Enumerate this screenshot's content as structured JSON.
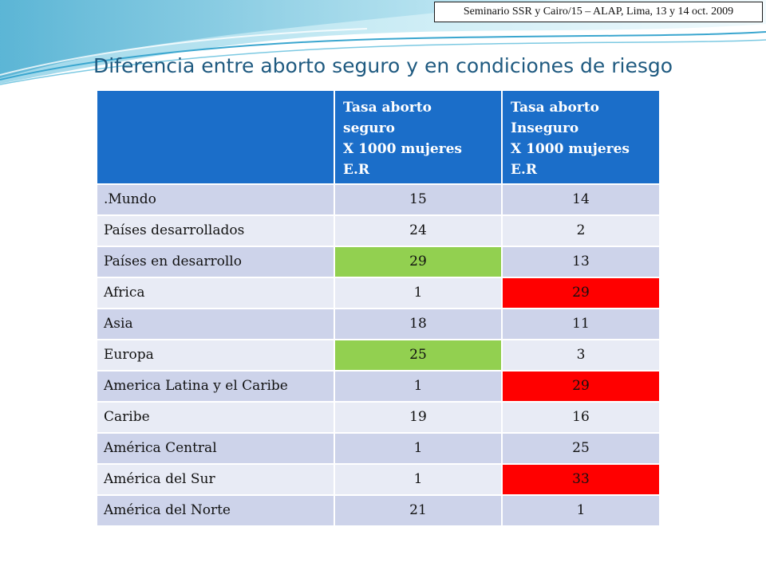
{
  "header": {
    "seminar": "Seminario  SSR y Cairo/15 – ALAP, Lima,  13 y 14 oct. 2009"
  },
  "title": "Diferencia entre aborto seguro y en condiciones de riesgo",
  "table": {
    "columns": [
      "",
      [
        "Tasa aborto",
        "seguro",
        "X 1000 mujeres",
        "E.R"
      ],
      [
        "Tasa aborto",
        "Inseguro",
        "X 1000 mujeres",
        "E.R"
      ]
    ],
    "rows": [
      {
        "label": ".Mundo",
        "seguro": "15",
        "inseguro": "14"
      },
      {
        "label": "Países desarrollados",
        "seguro": "24",
        "inseguro": "2"
      },
      {
        "label": "Países en desarrollo",
        "seguro": "29",
        "inseguro": "13"
      },
      {
        "label": "Africa",
        "seguro": "1",
        "inseguro": "29"
      },
      {
        "label": "Asia",
        "seguro": "18",
        "inseguro": "11"
      },
      {
        "label": "Europa",
        "seguro": "25",
        "inseguro": "3"
      },
      {
        "label": "America Latina y el Caribe",
        "seguro": "1",
        "inseguro": "29"
      },
      {
        "label": "Caribe",
        "seguro": "19",
        "inseguro": "16"
      },
      {
        "label": "América Central",
        "seguro": "1",
        "inseguro": "25"
      },
      {
        "label": "América del Sur",
        "seguro": "1",
        "inseguro": "33"
      },
      {
        "label": "América del Norte",
        "seguro": "21",
        "inseguro": "1"
      }
    ]
  },
  "colors": {
    "header_bg": "#1b6ec9",
    "row_dark": "#cdd3ea",
    "row_light": "#e8ebf5",
    "highlight_green": "#92d050",
    "highlight_red": "#ff0000",
    "title": "#1f5a80"
  }
}
